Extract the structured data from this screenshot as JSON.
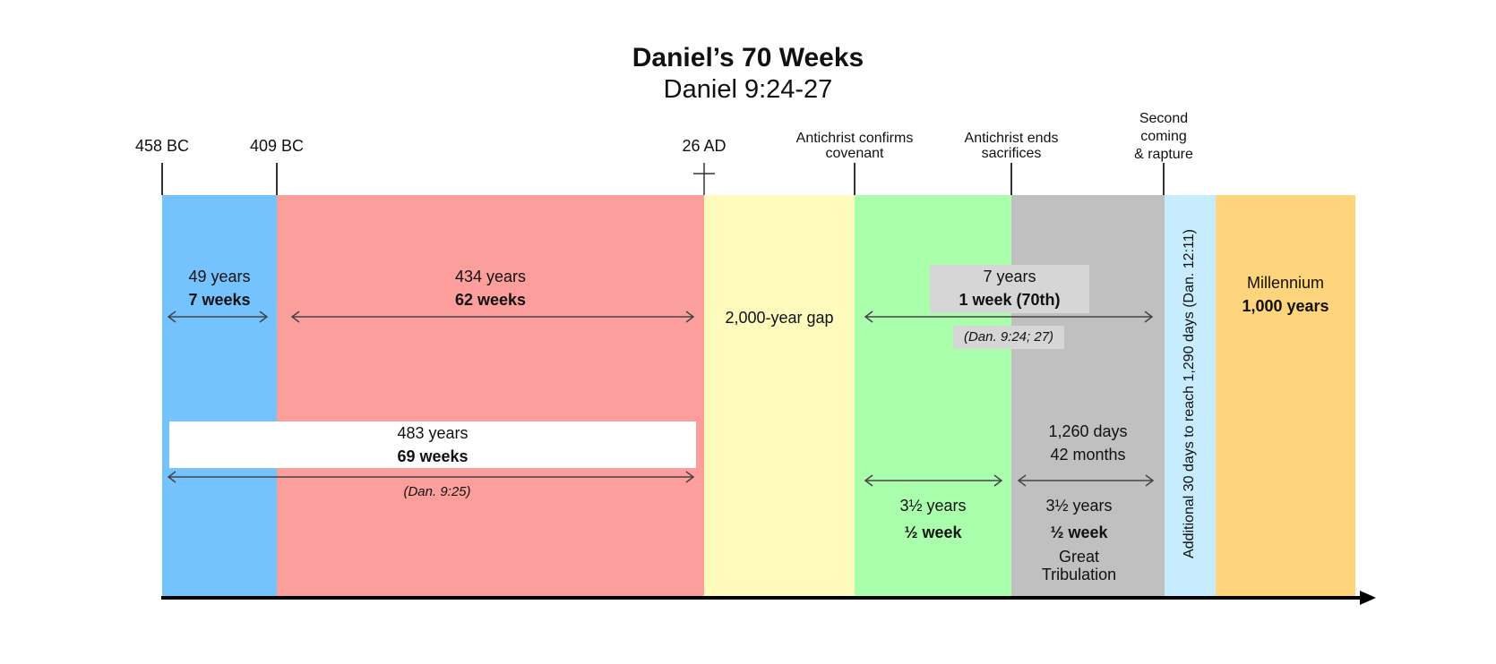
{
  "title": "Daniel’s 70 Weeks",
  "subtitle": "Daniel 9:24-27",
  "markers": {
    "m1": "458 BC",
    "m2": "409 BC",
    "m3": "26 AD",
    "m4_line1": "Antichrist confirms",
    "m4_line2": "covenant",
    "m5_line1": "Antichrist ends",
    "m5_line2": "sacrifices",
    "m6_line1": "Second",
    "m6_line2": "coming",
    "m6_line3": "& rapture"
  },
  "periods": {
    "p1": {
      "years": "49 years",
      "weeks": "7 weeks"
    },
    "p2": {
      "years": "434 years",
      "weeks": "62 weeks"
    },
    "gap": "2,000-year gap",
    "p70": {
      "years": "7 years",
      "weeks": "1 week (70th)",
      "ref": "(Dan. 9:24; 27)"
    },
    "p69": {
      "years": "483 years",
      "weeks": "69 weeks",
      "ref": "(Dan. 9:25)"
    },
    "half1": {
      "years": "3½ years",
      "weeks": "½ week"
    },
    "half2": {
      "days": "1,260 days",
      "months": "42 months",
      "years": "3½ years",
      "weeks": "½ week",
      "name_line1": "Great",
      "name_line2": "Tribulation"
    },
    "extra": "Additional 30 days to reach 1,290 days  (Dan. 12:11)",
    "millennium": {
      "name": "Millennium",
      "years": "1,000 years"
    }
  },
  "colors": {
    "blue": "#74c3ff",
    "red": "#fc9e9c",
    "yellow": "#fefbbc",
    "green": "#aaffad",
    "grey": "#c0c0c0",
    "lightblue": "#c6ecfe",
    "orange": "#fed47c"
  }
}
